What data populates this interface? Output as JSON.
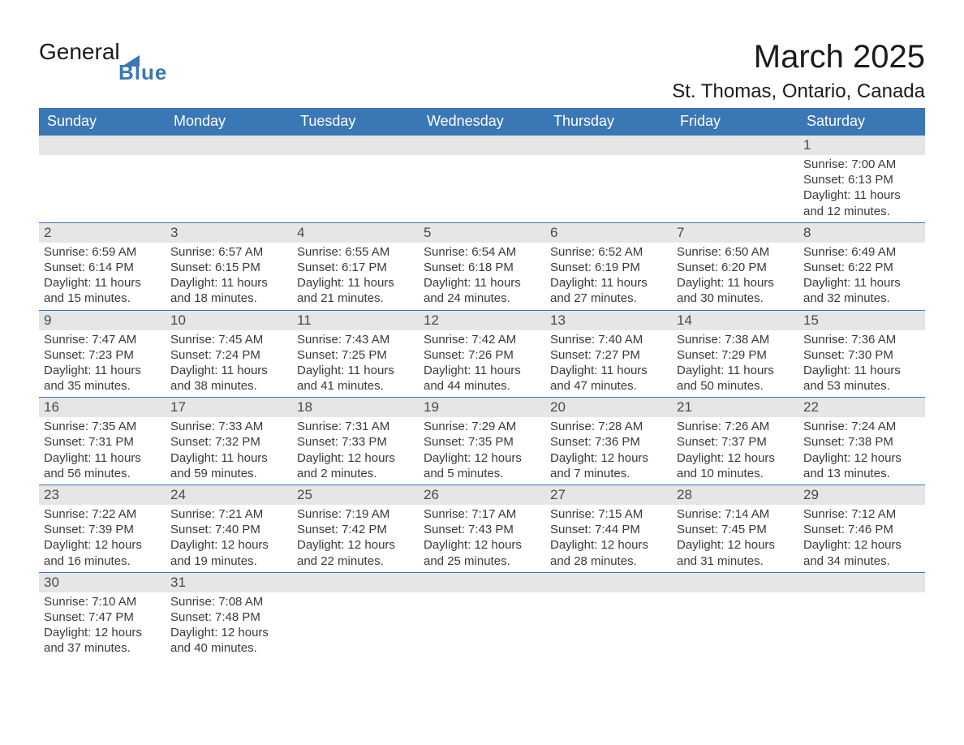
{
  "logo": {
    "word1": "General",
    "word2": "Blue",
    "accent_color": "#3a77b5"
  },
  "header": {
    "month_title": "March 2025",
    "location": "St. Thomas, Ontario, Canada"
  },
  "calendar": {
    "header_bg": "#3a77b5",
    "header_fg": "#ffffff",
    "daynum_bg": "#e6e6e6",
    "border_color": "#3a77b5",
    "text_color": "#3a3a3a",
    "day_names": [
      "Sunday",
      "Monday",
      "Tuesday",
      "Wednesday",
      "Thursday",
      "Friday",
      "Saturday"
    ],
    "weeks": [
      [
        null,
        null,
        null,
        null,
        null,
        null,
        {
          "n": "1",
          "sr": "Sunrise: 7:00 AM",
          "ss": "Sunset: 6:13 PM",
          "d1": "Daylight: 11 hours",
          "d2": "and 12 minutes."
        }
      ],
      [
        {
          "n": "2",
          "sr": "Sunrise: 6:59 AM",
          "ss": "Sunset: 6:14 PM",
          "d1": "Daylight: 11 hours",
          "d2": "and 15 minutes."
        },
        {
          "n": "3",
          "sr": "Sunrise: 6:57 AM",
          "ss": "Sunset: 6:15 PM",
          "d1": "Daylight: 11 hours",
          "d2": "and 18 minutes."
        },
        {
          "n": "4",
          "sr": "Sunrise: 6:55 AM",
          "ss": "Sunset: 6:17 PM",
          "d1": "Daylight: 11 hours",
          "d2": "and 21 minutes."
        },
        {
          "n": "5",
          "sr": "Sunrise: 6:54 AM",
          "ss": "Sunset: 6:18 PM",
          "d1": "Daylight: 11 hours",
          "d2": "and 24 minutes."
        },
        {
          "n": "6",
          "sr": "Sunrise: 6:52 AM",
          "ss": "Sunset: 6:19 PM",
          "d1": "Daylight: 11 hours",
          "d2": "and 27 minutes."
        },
        {
          "n": "7",
          "sr": "Sunrise: 6:50 AM",
          "ss": "Sunset: 6:20 PM",
          "d1": "Daylight: 11 hours",
          "d2": "and 30 minutes."
        },
        {
          "n": "8",
          "sr": "Sunrise: 6:49 AM",
          "ss": "Sunset: 6:22 PM",
          "d1": "Daylight: 11 hours",
          "d2": "and 32 minutes."
        }
      ],
      [
        {
          "n": "9",
          "sr": "Sunrise: 7:47 AM",
          "ss": "Sunset: 7:23 PM",
          "d1": "Daylight: 11 hours",
          "d2": "and 35 minutes."
        },
        {
          "n": "10",
          "sr": "Sunrise: 7:45 AM",
          "ss": "Sunset: 7:24 PM",
          "d1": "Daylight: 11 hours",
          "d2": "and 38 minutes."
        },
        {
          "n": "11",
          "sr": "Sunrise: 7:43 AM",
          "ss": "Sunset: 7:25 PM",
          "d1": "Daylight: 11 hours",
          "d2": "and 41 minutes."
        },
        {
          "n": "12",
          "sr": "Sunrise: 7:42 AM",
          "ss": "Sunset: 7:26 PM",
          "d1": "Daylight: 11 hours",
          "d2": "and 44 minutes."
        },
        {
          "n": "13",
          "sr": "Sunrise: 7:40 AM",
          "ss": "Sunset: 7:27 PM",
          "d1": "Daylight: 11 hours",
          "d2": "and 47 minutes."
        },
        {
          "n": "14",
          "sr": "Sunrise: 7:38 AM",
          "ss": "Sunset: 7:29 PM",
          "d1": "Daylight: 11 hours",
          "d2": "and 50 minutes."
        },
        {
          "n": "15",
          "sr": "Sunrise: 7:36 AM",
          "ss": "Sunset: 7:30 PM",
          "d1": "Daylight: 11 hours",
          "d2": "and 53 minutes."
        }
      ],
      [
        {
          "n": "16",
          "sr": "Sunrise: 7:35 AM",
          "ss": "Sunset: 7:31 PM",
          "d1": "Daylight: 11 hours",
          "d2": "and 56 minutes."
        },
        {
          "n": "17",
          "sr": "Sunrise: 7:33 AM",
          "ss": "Sunset: 7:32 PM",
          "d1": "Daylight: 11 hours",
          "d2": "and 59 minutes."
        },
        {
          "n": "18",
          "sr": "Sunrise: 7:31 AM",
          "ss": "Sunset: 7:33 PM",
          "d1": "Daylight: 12 hours",
          "d2": "and 2 minutes."
        },
        {
          "n": "19",
          "sr": "Sunrise: 7:29 AM",
          "ss": "Sunset: 7:35 PM",
          "d1": "Daylight: 12 hours",
          "d2": "and 5 minutes."
        },
        {
          "n": "20",
          "sr": "Sunrise: 7:28 AM",
          "ss": "Sunset: 7:36 PM",
          "d1": "Daylight: 12 hours",
          "d2": "and 7 minutes."
        },
        {
          "n": "21",
          "sr": "Sunrise: 7:26 AM",
          "ss": "Sunset: 7:37 PM",
          "d1": "Daylight: 12 hours",
          "d2": "and 10 minutes."
        },
        {
          "n": "22",
          "sr": "Sunrise: 7:24 AM",
          "ss": "Sunset: 7:38 PM",
          "d1": "Daylight: 12 hours",
          "d2": "and 13 minutes."
        }
      ],
      [
        {
          "n": "23",
          "sr": "Sunrise: 7:22 AM",
          "ss": "Sunset: 7:39 PM",
          "d1": "Daylight: 12 hours",
          "d2": "and 16 minutes."
        },
        {
          "n": "24",
          "sr": "Sunrise: 7:21 AM",
          "ss": "Sunset: 7:40 PM",
          "d1": "Daylight: 12 hours",
          "d2": "and 19 minutes."
        },
        {
          "n": "25",
          "sr": "Sunrise: 7:19 AM",
          "ss": "Sunset: 7:42 PM",
          "d1": "Daylight: 12 hours",
          "d2": "and 22 minutes."
        },
        {
          "n": "26",
          "sr": "Sunrise: 7:17 AM",
          "ss": "Sunset: 7:43 PM",
          "d1": "Daylight: 12 hours",
          "d2": "and 25 minutes."
        },
        {
          "n": "27",
          "sr": "Sunrise: 7:15 AM",
          "ss": "Sunset: 7:44 PM",
          "d1": "Daylight: 12 hours",
          "d2": "and 28 minutes."
        },
        {
          "n": "28",
          "sr": "Sunrise: 7:14 AM",
          "ss": "Sunset: 7:45 PM",
          "d1": "Daylight: 12 hours",
          "d2": "and 31 minutes."
        },
        {
          "n": "29",
          "sr": "Sunrise: 7:12 AM",
          "ss": "Sunset: 7:46 PM",
          "d1": "Daylight: 12 hours",
          "d2": "and 34 minutes."
        }
      ],
      [
        {
          "n": "30",
          "sr": "Sunrise: 7:10 AM",
          "ss": "Sunset: 7:47 PM",
          "d1": "Daylight: 12 hours",
          "d2": "and 37 minutes."
        },
        {
          "n": "31",
          "sr": "Sunrise: 7:08 AM",
          "ss": "Sunset: 7:48 PM",
          "d1": "Daylight: 12 hours",
          "d2": "and 40 minutes."
        },
        null,
        null,
        null,
        null,
        null
      ]
    ]
  }
}
